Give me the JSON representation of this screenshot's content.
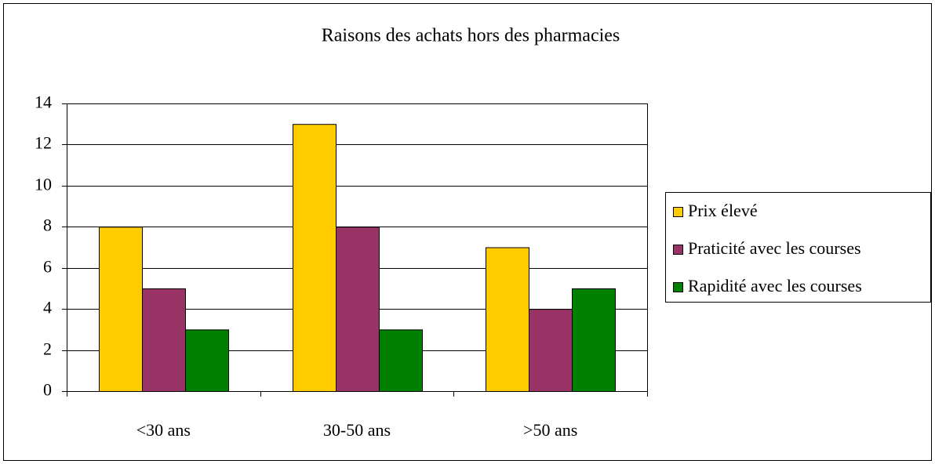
{
  "chart_data": {
    "type": "bar",
    "title": "Raisons des achats hors des pharmacies",
    "categories": [
      "<30 ans",
      "30-50 ans",
      ">50 ans"
    ],
    "series": [
      {
        "name": "Prix élevé",
        "color": "#ffcc00",
        "values": [
          8,
          13,
          7
        ]
      },
      {
        "name": "Praticité avec les courses",
        "color": "#993366",
        "values": [
          5,
          8,
          4
        ]
      },
      {
        "name": "Rapidité avec les courses",
        "color": "#008000",
        "values": [
          3,
          3,
          5
        ]
      }
    ],
    "ylim": [
      0,
      14
    ],
    "yticks": [
      0,
      2,
      4,
      6,
      8,
      10,
      12,
      14
    ],
    "grid": true,
    "legend": "right"
  }
}
